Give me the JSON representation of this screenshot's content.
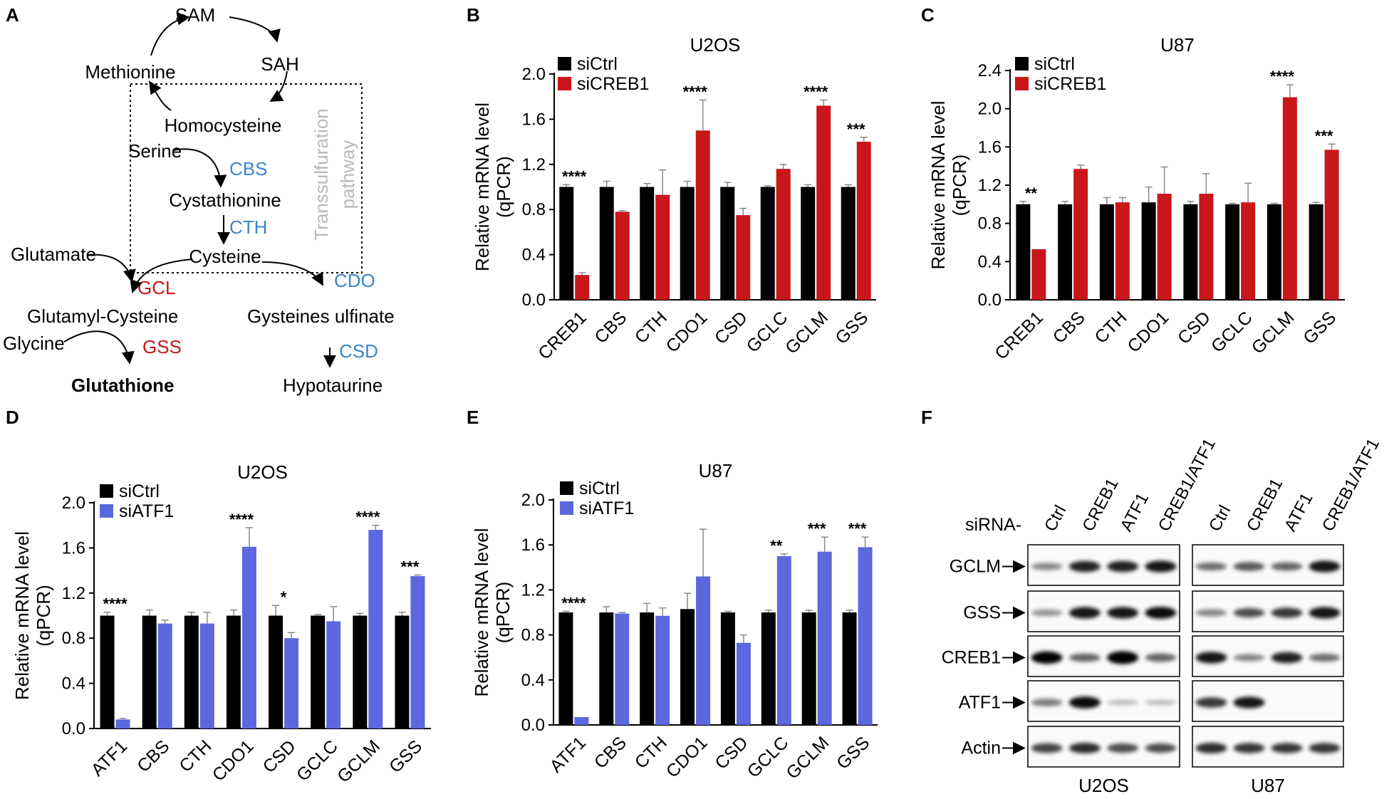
{
  "colors": {
    "ctrl": "#000000",
    "creb1": "#c8161b",
    "atf1": "#5b68de",
    "blue_text": "#3a86c8",
    "red_text": "#c8161b",
    "gray_text": "#b8b8b8"
  },
  "pathway": {
    "panel_label": "A",
    "sam": "SAM",
    "sah": "SAH",
    "methionine": "Methionine",
    "homocysteine": "Homocysteine",
    "serine": "Serine",
    "cbs": "CBS",
    "cystathionine": "Cystathionine",
    "cth": "CTH",
    "cysteine": "Cysteine",
    "glutamate": "Glutamate",
    "gcl": "GCL",
    "cdo": "CDO",
    "glutamyl_cysteine": "Glutamyl-Cysteine",
    "gysteines": "Gysteines ulfinate",
    "glycine": "Glycine",
    "gss": "GSS",
    "csd": "CSD",
    "glutathione": "Glutathione",
    "hypotaurine": "Hypotaurine",
    "box_label_1": "Transsulfuration",
    "box_label_2": "pathway"
  },
  "chart_data": [
    {
      "panel": "B",
      "type": "bar",
      "title": "U2OS",
      "ylabel": [
        "Relative mRNA level",
        "(qPCR)"
      ],
      "ylim": [
        0,
        2.0
      ],
      "yticks": [
        "0.0",
        "0.4",
        "0.8",
        "1.2",
        "1.6",
        "2.0"
      ],
      "categories": [
        "CREB1",
        "CBS",
        "CTH",
        "CDO1",
        "CSD",
        "GCLC",
        "GCLM",
        "GSS"
      ],
      "series": [
        {
          "name": "siCtrl",
          "color": "ctrl",
          "values": [
            1.0,
            1.0,
            1.0,
            1.0,
            1.0,
            1.0,
            1.0,
            1.0
          ],
          "errors": [
            0.02,
            0.05,
            0.03,
            0.05,
            0.04,
            0.01,
            0.02,
            0.02
          ]
        },
        {
          "name": "siCREB1",
          "color": "creb1",
          "values": [
            0.22,
            0.78,
            0.93,
            1.5,
            0.75,
            1.16,
            1.72,
            1.4
          ],
          "errors": [
            0.02,
            0.01,
            0.22,
            0.27,
            0.06,
            0.04,
            0.05,
            0.04
          ]
        }
      ],
      "annotations": [
        {
          "category": "CREB1",
          "text": "****"
        },
        {
          "category": "CDO1",
          "text": "****"
        },
        {
          "category": "GCLM",
          "text": "****"
        },
        {
          "category": "GSS",
          "text": "***"
        }
      ]
    },
    {
      "panel": "C",
      "type": "bar",
      "title": "U87",
      "ylabel": [
        "Relative mRNA level",
        "(qPCR)"
      ],
      "ylim": [
        0,
        2.4
      ],
      "yticks": [
        "0.0",
        "0.4",
        "0.8",
        "1.2",
        "1.6",
        "2.0",
        "2.4"
      ],
      "categories": [
        "CREB1",
        "CBS",
        "CTH",
        "CDO1",
        "CSD",
        "GCLC",
        "GCLM",
        "GSS"
      ],
      "series": [
        {
          "name": "siCtrl",
          "color": "ctrl",
          "values": [
            1.0,
            1.0,
            1.0,
            1.02,
            1.0,
            1.0,
            1.0,
            1.0
          ],
          "errors": [
            0.03,
            0.03,
            0.07,
            0.16,
            0.03,
            0.01,
            0.01,
            0.02
          ]
        },
        {
          "name": "siCREB1",
          "color": "creb1",
          "values": [
            0.53,
            1.37,
            1.02,
            1.11,
            1.11,
            1.02,
            2.12,
            1.57
          ],
          "errors": [
            0.0,
            0.04,
            0.05,
            0.28,
            0.21,
            0.2,
            0.13,
            0.06
          ]
        }
      ],
      "annotations": [
        {
          "category": "CREB1",
          "text": "**"
        },
        {
          "category": "GCLM",
          "text": "****"
        },
        {
          "category": "GSS",
          "text": "***"
        }
      ]
    },
    {
      "panel": "D",
      "type": "bar",
      "title": "U2OS",
      "ylabel": [
        "Relative mRNA level",
        "(qPCR)"
      ],
      "ylim": [
        0,
        2.0
      ],
      "yticks": [
        "0.0",
        "0.4",
        "0.8",
        "1.2",
        "1.6",
        "2.0"
      ],
      "categories": [
        "ATF1",
        "CBS",
        "CTH",
        "CDO1",
        "CSD",
        "GCLC",
        "GCLM",
        "GSS"
      ],
      "series": [
        {
          "name": "siCtrl",
          "color": "ctrl",
          "values": [
            1.0,
            1.0,
            1.0,
            1.0,
            1.0,
            1.0,
            1.0,
            1.0
          ],
          "errors": [
            0.03,
            0.05,
            0.03,
            0.05,
            0.09,
            0.01,
            0.02,
            0.03
          ]
        },
        {
          "name": "siATF1",
          "color": "atf1",
          "values": [
            0.08,
            0.93,
            0.93,
            1.61,
            0.8,
            0.95,
            1.76,
            1.35
          ],
          "errors": [
            0.01,
            0.03,
            0.1,
            0.17,
            0.05,
            0.13,
            0.04,
            0.01
          ]
        }
      ],
      "annotations": [
        {
          "category": "ATF1",
          "text": "****"
        },
        {
          "category": "CDO1",
          "text": "****"
        },
        {
          "category": "CSD",
          "text": "*"
        },
        {
          "category": "GCLM",
          "text": "****"
        },
        {
          "category": "GSS",
          "text": "***"
        }
      ]
    },
    {
      "panel": "E",
      "type": "bar",
      "title": "U87",
      "ylabel": [
        "Relative mRNA level",
        "(qPCR)"
      ],
      "ylim": [
        0,
        2.0
      ],
      "yticks": [
        "0.0",
        "0.4",
        "0.8",
        "1.2",
        "1.6",
        "2.0"
      ],
      "categories": [
        "ATF1",
        "CBS",
        "CTH",
        "CDO1",
        "CSD",
        "GCLC",
        "GCLM",
        "GSS"
      ],
      "series": [
        {
          "name": "siCtrl",
          "color": "ctrl",
          "values": [
            1.0,
            1.0,
            1.0,
            1.03,
            1.0,
            1.0,
            1.0,
            1.0
          ],
          "errors": [
            0.01,
            0.05,
            0.08,
            0.14,
            0.01,
            0.02,
            0.02,
            0.02
          ]
        },
        {
          "name": "siATF1",
          "color": "atf1",
          "values": [
            0.07,
            0.99,
            0.97,
            1.32,
            0.73,
            1.5,
            1.54,
            1.58
          ],
          "errors": [
            0.0,
            0.01,
            0.07,
            0.42,
            0.07,
            0.02,
            0.13,
            0.09
          ]
        }
      ],
      "annotations": [
        {
          "category": "ATF1",
          "text": "****"
        },
        {
          "category": "GCLC",
          "text": "**"
        },
        {
          "category": "GCLM",
          "text": "***"
        },
        {
          "category": "GSS",
          "text": "***"
        }
      ]
    }
  ],
  "blot": {
    "panel_label": "F",
    "sirna_label": "siRNA-",
    "lane_labels": [
      "Ctrl",
      "CREB1",
      "ATF1",
      "CREB1/ATF1"
    ],
    "rows": [
      "GCLM",
      "GSS",
      "CREB1",
      "ATF1",
      "Actin"
    ],
    "groups": [
      "U2OS",
      "U87"
    ],
    "intensities": {
      "U2OS": [
        [
          0.35,
          0.8,
          0.8,
          0.85
        ],
        [
          0.3,
          0.85,
          0.85,
          0.9
        ],
        [
          0.95,
          0.5,
          1.0,
          0.5
        ],
        [
          0.4,
          0.9,
          0.12,
          0.12
        ],
        [
          0.65,
          0.75,
          0.6,
          0.6
        ]
      ],
      "U87": [
        [
          0.45,
          0.55,
          0.5,
          0.85
        ],
        [
          0.35,
          0.6,
          0.7,
          0.85
        ],
        [
          0.85,
          0.35,
          0.8,
          0.45
        ],
        [
          0.7,
          0.85,
          0.0,
          0.0
        ],
        [
          0.75,
          0.7,
          0.7,
          0.7
        ]
      ]
    }
  }
}
